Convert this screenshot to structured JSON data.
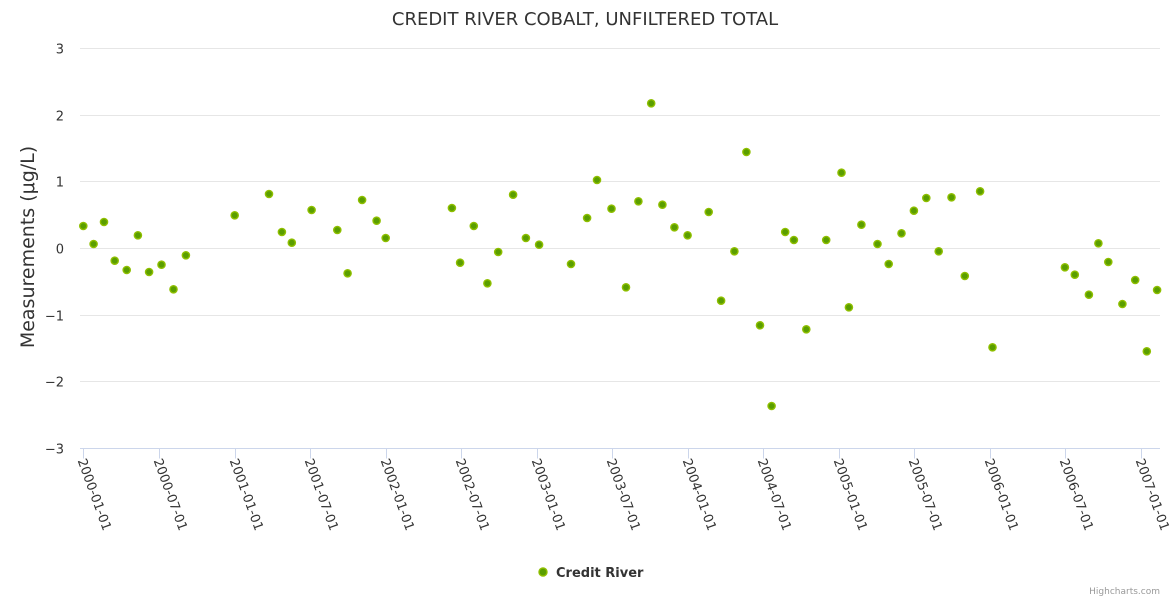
{
  "chart_data": {
    "type": "scatter",
    "title": "CREDIT RIVER COBALT, UNFILTERED TOTAL",
    "ylabel": "Measurements (μg/L)",
    "xlabel": "",
    "ylim": [
      -3,
      3
    ],
    "yticks": [
      -3,
      -2,
      -1,
      0,
      1,
      2,
      3
    ],
    "ytick_labels": [
      "−3",
      "−2",
      "−1",
      "0",
      "1",
      "2",
      "3"
    ],
    "xlim": [
      "1999-12-24",
      "2007-02-16"
    ],
    "xticks": [
      "2000-01-01",
      "2000-07-01",
      "2001-01-01",
      "2001-07-01",
      "2002-01-01",
      "2002-07-01",
      "2003-01-01",
      "2003-07-01",
      "2004-01-01",
      "2004-07-01",
      "2005-01-01",
      "2005-07-01",
      "2006-01-01",
      "2006-07-01",
      "2007-01-01"
    ],
    "grid": true,
    "legend": "bottom-center",
    "color": "#5a9e00",
    "marker_edge_color": "#8fbf00",
    "credits": "Highcharts.com",
    "series": [
      {
        "name": "Credit River",
        "points": [
          {
            "x": "2000-01-01",
            "y": 0.33
          },
          {
            "x": "2000-01-26",
            "y": 0.06
          },
          {
            "x": "2000-02-20",
            "y": 0.39
          },
          {
            "x": "2000-03-17",
            "y": -0.19
          },
          {
            "x": "2000-04-15",
            "y": -0.33
          },
          {
            "x": "2000-05-12",
            "y": 0.19
          },
          {
            "x": "2000-06-08",
            "y": -0.36
          },
          {
            "x": "2000-07-08",
            "y": -0.25
          },
          {
            "x": "2000-08-06",
            "y": -0.62
          },
          {
            "x": "2000-09-05",
            "y": -0.11
          },
          {
            "x": "2001-01-01",
            "y": 0.49
          },
          {
            "x": "2001-03-25",
            "y": 0.81
          },
          {
            "x": "2001-04-25",
            "y": 0.24
          },
          {
            "x": "2001-05-19",
            "y": 0.08
          },
          {
            "x": "2001-07-06",
            "y": 0.57
          },
          {
            "x": "2001-09-06",
            "y": 0.27
          },
          {
            "x": "2001-10-01",
            "y": -0.38
          },
          {
            "x": "2001-11-05",
            "y": 0.72
          },
          {
            "x": "2001-12-10",
            "y": 0.41
          },
          {
            "x": "2002-01-01",
            "y": 0.15
          },
          {
            "x": "2002-06-10",
            "y": 0.6
          },
          {
            "x": "2002-06-30",
            "y": -0.22
          },
          {
            "x": "2002-08-02",
            "y": 0.33
          },
          {
            "x": "2002-09-04",
            "y": -0.53
          },
          {
            "x": "2002-09-30",
            "y": -0.06
          },
          {
            "x": "2002-11-05",
            "y": 0.8
          },
          {
            "x": "2002-12-06",
            "y": 0.15
          },
          {
            "x": "2003-01-07",
            "y": 0.05
          },
          {
            "x": "2003-03-25",
            "y": -0.24
          },
          {
            "x": "2003-05-03",
            "y": 0.45
          },
          {
            "x": "2003-05-27",
            "y": 1.02
          },
          {
            "x": "2003-07-01",
            "y": 0.59
          },
          {
            "x": "2003-08-05",
            "y": -0.59
          },
          {
            "x": "2003-09-04",
            "y": 0.7
          },
          {
            "x": "2003-10-05",
            "y": 2.17
          },
          {
            "x": "2003-11-01",
            "y": 0.65
          },
          {
            "x": "2003-11-30",
            "y": 0.31
          },
          {
            "x": "2004-01-01",
            "y": 0.19
          },
          {
            "x": "2004-02-21",
            "y": 0.54
          },
          {
            "x": "2004-03-22",
            "y": -0.79
          },
          {
            "x": "2004-04-23",
            "y": -0.05
          },
          {
            "x": "2004-05-22",
            "y": 1.44
          },
          {
            "x": "2004-06-24",
            "y": -1.16
          },
          {
            "x": "2004-07-22",
            "y": -2.37
          },
          {
            "x": "2004-08-24",
            "y": 0.24
          },
          {
            "x": "2004-09-14",
            "y": 0.12
          },
          {
            "x": "2004-10-14",
            "y": -1.22
          },
          {
            "x": "2004-12-01",
            "y": 0.12
          },
          {
            "x": "2005-01-07",
            "y": 1.13
          },
          {
            "x": "2005-01-25",
            "y": -0.89
          },
          {
            "x": "2005-02-24",
            "y": 0.35
          },
          {
            "x": "2005-04-04",
            "y": 0.06
          },
          {
            "x": "2005-05-01",
            "y": -0.24
          },
          {
            "x": "2005-06-01",
            "y": 0.22
          },
          {
            "x": "2005-07-01",
            "y": 0.56
          },
          {
            "x": "2005-07-31",
            "y": 0.75
          },
          {
            "x": "2005-08-30",
            "y": -0.05
          },
          {
            "x": "2005-09-30",
            "y": 0.76
          },
          {
            "x": "2005-11-01",
            "y": -0.42
          },
          {
            "x": "2005-12-08",
            "y": 0.85
          },
          {
            "x": "2006-01-07",
            "y": -1.49
          },
          {
            "x": "2006-07-01",
            "y": -0.29
          },
          {
            "x": "2006-07-25",
            "y": -0.4
          },
          {
            "x": "2006-08-28",
            "y": -0.7
          },
          {
            "x": "2006-09-20",
            "y": 0.07
          },
          {
            "x": "2006-10-14",
            "y": -0.21
          },
          {
            "x": "2006-11-17",
            "y": -0.84
          },
          {
            "x": "2006-12-18",
            "y": -0.48
          },
          {
            "x": "2007-01-15",
            "y": -1.55
          },
          {
            "x": "2007-02-09",
            "y": -0.63
          }
        ]
      }
    ]
  }
}
